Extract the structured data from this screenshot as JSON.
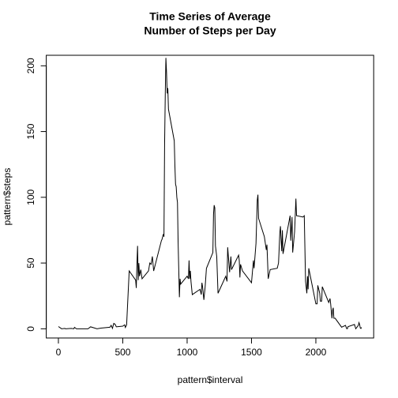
{
  "chart_data": {
    "type": "line",
    "title": [
      "Time Series of Average",
      "Number of Steps per Day"
    ],
    "xlabel": "pattern$interval",
    "ylabel": "pattern$steps",
    "x": [
      0,
      25,
      50,
      55,
      100,
      120,
      125,
      140,
      200,
      230,
      250,
      300,
      330,
      400,
      410,
      420,
      430,
      440,
      450,
      500,
      515,
      520,
      530,
      550,
      600,
      605,
      610,
      615,
      620,
      625,
      630,
      640,
      650,
      700,
      710,
      720,
      730,
      740,
      800,
      805,
      815,
      820,
      825,
      830,
      835,
      840,
      845,
      850,
      855,
      900,
      905,
      910,
      915,
      920,
      925,
      930,
      940,
      945,
      950,
      1000,
      1010,
      1015,
      1020,
      1025,
      1030,
      1040,
      1100,
      1110,
      1115,
      1120,
      1130,
      1140,
      1150,
      1200,
      1205,
      1210,
      1215,
      1220,
      1230,
      1240,
      1300,
      1310,
      1315,
      1330,
      1340,
      1345,
      1400,
      1405,
      1410,
      1415,
      1430,
      1500,
      1515,
      1520,
      1535,
      1545,
      1550,
      1555,
      1600,
      1615,
      1620,
      1630,
      1645,
      1700,
      1710,
      1715,
      1720,
      1725,
      1730,
      1735,
      1740,
      1745,
      1800,
      1805,
      1815,
      1820,
      1835,
      1845,
      1850,
      1900,
      1910,
      1920,
      1930,
      1935,
      1940,
      1945,
      2000,
      2005,
      2010,
      2015,
      2030,
      2035,
      2045,
      2050,
      2100,
      2110,
      2115,
      2125,
      2130,
      2135,
      2140,
      2150,
      2200,
      2230,
      2240,
      2245,
      2250,
      2300,
      2310,
      2330,
      2335,
      2340,
      2345,
      2350,
      2355
    ],
    "series": [
      {
        "color": "#000000",
        "values": [
          1.7,
          0,
          0.3,
          0,
          0.3,
          0,
          1.1,
          0,
          0,
          0,
          1.5,
          0,
          0.5,
          1.2,
          2.6,
          0.3,
          4.1,
          3.5,
          1.5,
          2,
          3,
          1,
          3,
          44,
          37,
          31,
          49,
          63,
          37,
          50,
          40,
          45,
          38,
          44,
          50,
          49,
          55,
          44,
          67,
          68,
          72,
          70,
          140,
          177,
          206,
          195,
          179,
          183,
          167,
          143,
          124,
          110,
          108,
          100,
          96,
          66,
          24,
          38,
          34,
          40,
          38,
          52,
          38,
          44,
          36,
          26,
          30,
          26,
          35,
          32,
          22,
          32,
          46,
          58,
          87,
          94,
          92,
          63,
          55,
          27,
          40,
          36,
          62,
          43,
          55,
          45,
          56,
          52,
          39,
          49,
          44,
          35,
          52,
          46,
          65,
          98,
          102,
          84,
          70,
          60,
          64,
          38,
          45,
          46,
          50,
          61,
          73,
          78,
          68,
          59,
          75,
          57,
          86,
          67,
          85,
          58,
          74,
          99,
          86,
          85,
          86,
          36,
          27,
          40,
          30,
          46,
          19,
          19,
          19,
          33,
          27,
          21,
          21,
          32,
          20,
          23,
          19,
          8,
          14,
          16,
          8,
          8,
          1.2,
          2.6,
          0,
          0.1,
          1.6,
          3.3,
          0,
          2.6,
          4.7,
          3.3,
          0.6,
          0.2,
          1.1
        ]
      }
    ],
    "xlim": [
      -94.2,
      2449.2
    ],
    "ylim": [
      -7,
      208
    ],
    "xticks": [
      0,
      500,
      1000,
      1500,
      2000
    ],
    "yticks": [
      0,
      50,
      100,
      150,
      200
    ]
  }
}
